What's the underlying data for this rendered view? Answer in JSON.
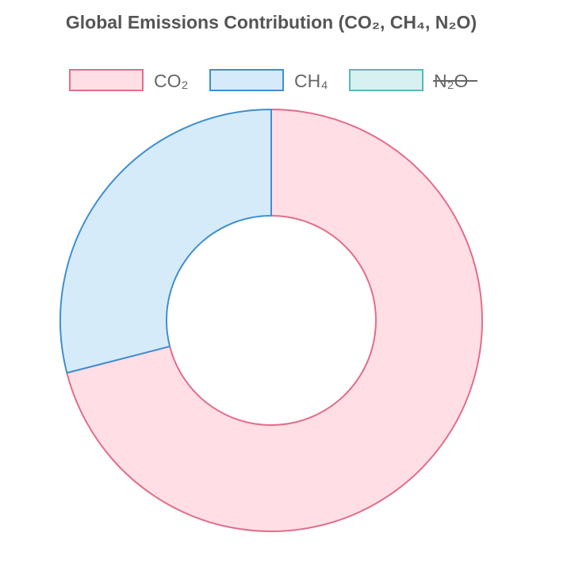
{
  "chart_data": {
    "type": "pie",
    "variant": "doughnut",
    "title": "Global Emissions Contribution (CO₂, CH₄, N₂O)",
    "legend_position": "top",
    "series": [
      {
        "name": "CO₂",
        "value": 71,
        "fill": "#ffdfe5",
        "stroke": "#e36d8a",
        "hidden": false
      },
      {
        "name": "CH₄",
        "value": 29,
        "fill": "#d6ebfa",
        "stroke": "#3f8fd0",
        "hidden": false
      },
      {
        "name": "N₂O",
        "value": 0,
        "fill": "#d7f1f0",
        "stroke": "#5ab8b8",
        "hidden": true
      }
    ]
  }
}
